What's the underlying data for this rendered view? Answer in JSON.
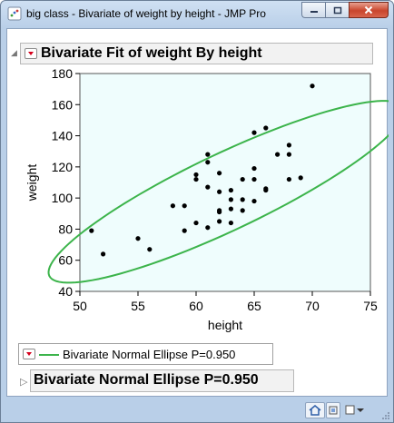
{
  "window": {
    "title": "big class - Bivariate of weight by height - JMP Pro",
    "icon": "jmp-app-icon",
    "controls": {
      "minimize": "minimize-icon",
      "maximize": "maximize-icon",
      "close": "close-icon"
    }
  },
  "report": {
    "main_title": "Bivariate Fit of weight By height",
    "legend_label": "Bivariate Normal Ellipse P=0.950",
    "section_title": "Bivariate Normal Ellipse P=0.950"
  },
  "colors": {
    "plot_background": "#effdfd",
    "ellipse": "#3cb44b",
    "points": "#000000",
    "hotspot": "#d6001c"
  },
  "chart_data": {
    "type": "scatter",
    "title": "Bivariate Fit of weight By height",
    "xlabel": "height",
    "ylabel": "weight",
    "xlim": [
      50,
      75
    ],
    "ylim": [
      40,
      180
    ],
    "xticks": [
      50,
      55,
      60,
      65,
      70,
      75
    ],
    "yticks": [
      40,
      60,
      80,
      100,
      120,
      140,
      160,
      180
    ],
    "grid": false,
    "legend": "bottom-left",
    "points": [
      {
        "x": 51,
        "y": 79
      },
      {
        "x": 52,
        "y": 64
      },
      {
        "x": 55,
        "y": 74
      },
      {
        "x": 56,
        "y": 67
      },
      {
        "x": 58,
        "y": 95
      },
      {
        "x": 59,
        "y": 95
      },
      {
        "x": 59,
        "y": 79
      },
      {
        "x": 60,
        "y": 84
      },
      {
        "x": 60,
        "y": 112
      },
      {
        "x": 60,
        "y": 115
      },
      {
        "x": 61,
        "y": 81
      },
      {
        "x": 61,
        "y": 107
      },
      {
        "x": 61,
        "y": 123
      },
      {
        "x": 61,
        "y": 128
      },
      {
        "x": 62,
        "y": 85
      },
      {
        "x": 62,
        "y": 91
      },
      {
        "x": 62,
        "y": 92
      },
      {
        "x": 62,
        "y": 104
      },
      {
        "x": 62,
        "y": 116
      },
      {
        "x": 63,
        "y": 84
      },
      {
        "x": 63,
        "y": 93
      },
      {
        "x": 63,
        "y": 99
      },
      {
        "x": 63,
        "y": 105
      },
      {
        "x": 64,
        "y": 92
      },
      {
        "x": 64,
        "y": 99
      },
      {
        "x": 64,
        "y": 112
      },
      {
        "x": 65,
        "y": 98
      },
      {
        "x": 65,
        "y": 112
      },
      {
        "x": 65,
        "y": 119
      },
      {
        "x": 65,
        "y": 142
      },
      {
        "x": 66,
        "y": 105
      },
      {
        "x": 66,
        "y": 106
      },
      {
        "x": 66,
        "y": 145
      },
      {
        "x": 67,
        "y": 128
      },
      {
        "x": 68,
        "y": 112
      },
      {
        "x": 68,
        "y": 128
      },
      {
        "x": 68,
        "y": 134
      },
      {
        "x": 69,
        "y": 113
      },
      {
        "x": 70,
        "y": 172
      }
    ],
    "ellipse": {
      "center": [
        62.6,
        104
      ],
      "semi_axis_major": 60,
      "semi_axis_minor": 6.9,
      "slope": 4.25
    }
  }
}
